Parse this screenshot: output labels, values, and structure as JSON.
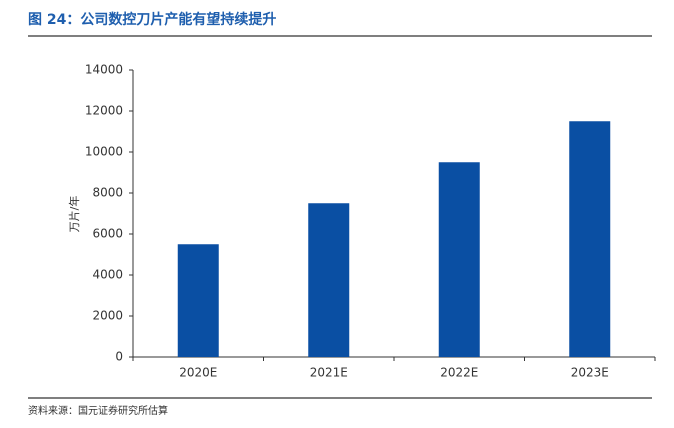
{
  "chart_data": {
    "type": "bar",
    "title": "图 24：公司数控刀片产能有望持续提升",
    "y_label": "万片/年",
    "categories": [
      "2020E",
      "2021E",
      "2022E",
      "2023E"
    ],
    "values": [
      5500,
      7500,
      9500,
      11500
    ],
    "color": "#0a4fa3",
    "ylim": [
      0,
      14000
    ],
    "yticks": [
      0,
      2000,
      4000,
      6000,
      8000,
      10000,
      12000,
      14000
    ],
    "grid": false,
    "source": "资料来源：国元证券研究所估算"
  }
}
